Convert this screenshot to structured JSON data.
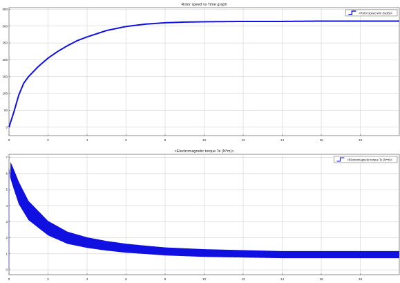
{
  "chart_data": [
    {
      "type": "line",
      "title": "Rotor speed vs Time graph",
      "xlabel": "",
      "ylabel": "",
      "xlim": [
        0,
        20
      ],
      "ylim": [
        -25,
        355
      ],
      "xticks": [
        0,
        2,
        4,
        6,
        8,
        10,
        12,
        14,
        16,
        18
      ],
      "yticks": [
        0,
        50,
        100,
        150,
        200,
        250,
        300,
        350
      ],
      "grid": true,
      "legend_position": "top-right",
      "series": [
        {
          "name": "<Rotor speed wm (rad/s)>",
          "color": "#1010e0",
          "x": [
            0,
            0.25,
            0.5,
            0.75,
            1.0,
            1.5,
            2,
            2.5,
            3,
            3.5,
            4,
            5,
            6,
            7,
            8,
            9,
            10,
            12,
            14,
            16,
            18,
            20
          ],
          "y": [
            0,
            45,
            95,
            130,
            150,
            180,
            205,
            225,
            242,
            257,
            268,
            287,
            299,
            306,
            310,
            312,
            313,
            314,
            314,
            315,
            315,
            315
          ]
        }
      ]
    },
    {
      "type": "line",
      "title": "<Electromagnetic torque Te (N*m)>",
      "xlabel": "",
      "ylabel": "",
      "xlim": [
        0,
        20
      ],
      "ylim": [
        -0.3,
        7.2
      ],
      "xticks": [
        0,
        2,
        4,
        6,
        8,
        10,
        12,
        14,
        16,
        18
      ],
      "yticks": [
        0,
        1,
        2,
        3,
        4,
        5,
        6,
        7
      ],
      "grid": true,
      "legend_position": "top-right",
      "series": [
        {
          "name": "<Electromagnetic torque Te (N*m)>",
          "color": "#1010e0",
          "x": [
            0,
            0.05,
            0.2,
            0.5,
            1,
            2,
            3,
            4,
            5,
            6,
            7,
            8,
            10,
            12,
            14,
            16,
            18,
            20
          ],
          "y": [
            0,
            6.3,
            5.8,
            4.8,
            3.7,
            2.6,
            2.0,
            1.7,
            1.5,
            1.35,
            1.25,
            1.15,
            1.05,
            1.0,
            0.95,
            0.95,
            0.95,
            0.95
          ],
          "band_halfwidth": [
            0,
            0.5,
            0.6,
            0.7,
            0.6,
            0.45,
            0.38,
            0.33,
            0.3,
            0.28,
            0.26,
            0.25,
            0.24,
            0.23,
            0.22,
            0.22,
            0.22,
            0.22
          ]
        }
      ]
    }
  ]
}
